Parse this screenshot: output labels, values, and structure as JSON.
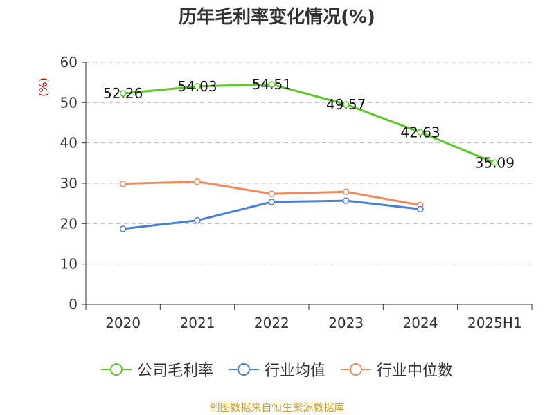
{
  "chart_data": {
    "type": "line",
    "title": "历年毛利率变化情况(%)",
    "ylabel": "(%)",
    "xlabel": "",
    "categories": [
      "2020",
      "2021",
      "2022",
      "2023",
      "2024",
      "2025H1"
    ],
    "ylim": [
      0,
      60
    ],
    "yticks": [
      0,
      10,
      20,
      30,
      40,
      50,
      60
    ],
    "grid": true,
    "legend_position": "bottom",
    "series": [
      {
        "name": "公司毛利率",
        "color": "#5cc928",
        "values": [
          52.26,
          54.03,
          54.51,
          49.57,
          42.63,
          35.09
        ],
        "labels": [
          "52.26",
          "54.03",
          "54.51",
          "49.57",
          "42.63",
          "35.09"
        ]
      },
      {
        "name": "行业均值",
        "color": "#4a7fd6",
        "values": [
          18.7,
          20.8,
          25.4,
          25.7,
          23.6,
          null
        ]
      },
      {
        "name": "行业中位数",
        "color": "#f08a5d",
        "values": [
          29.9,
          30.4,
          27.4,
          27.9,
          24.6,
          null
        ]
      }
    ]
  },
  "source": "制图数据来自恒生聚源数据库"
}
